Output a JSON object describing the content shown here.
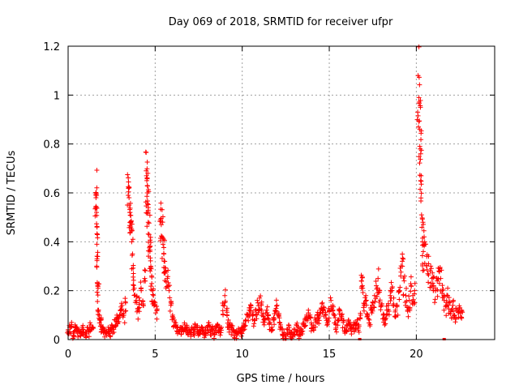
{
  "chart_data": {
    "type": "scatter",
    "title": "Day 069 of 2018, SRMTID for receiver ufpr",
    "xlabel": "GPS time / hours",
    "ylabel": "SRMTID / TECUs",
    "xlim": [
      0,
      24.5
    ],
    "ylim": [
      0,
      1.2
    ],
    "x_ticks": [
      0,
      5,
      10,
      15,
      20
    ],
    "x_tick_labels": [
      "0",
      "5",
      "10",
      "15",
      "20"
    ],
    "y_ticks": [
      0,
      0.2,
      0.4,
      0.6,
      0.8,
      1.0,
      1.2
    ],
    "y_tick_labels": [
      "0",
      "0.2",
      "0.4",
      "0.6",
      "0.8",
      "1",
      "1.2"
    ],
    "grid": true,
    "marker": "+",
    "color": "#ff0000",
    "bottom_markers_x": [
      16.75,
      21.6
    ],
    "series": [
      {
        "name": "SRMTID",
        "points": [
          [
            0.0,
            0.04
          ],
          [
            0.1,
            0.05
          ],
          [
            0.2,
            0.07
          ],
          [
            0.3,
            0.03
          ],
          [
            0.4,
            0.06
          ],
          [
            0.5,
            0.05
          ],
          [
            0.6,
            0.04
          ],
          [
            0.7,
            0.03
          ],
          [
            0.8,
            0.05
          ],
          [
            0.9,
            0.04
          ],
          [
            1.0,
            0.03
          ],
          [
            1.1,
            0.05
          ],
          [
            1.2,
            0.04
          ],
          [
            1.3,
            0.06
          ],
          [
            1.4,
            0.05
          ],
          [
            1.6,
            0.6
          ],
          [
            1.6,
            0.58
          ],
          [
            1.62,
            0.54
          ],
          [
            1.63,
            0.52
          ],
          [
            1.65,
            0.39
          ],
          [
            1.66,
            0.33
          ],
          [
            1.7,
            0.22
          ],
          [
            1.72,
            0.21
          ],
          [
            1.75,
            0.12
          ],
          [
            1.8,
            0.1
          ],
          [
            1.85,
            0.08
          ],
          [
            1.9,
            0.06
          ],
          [
            2.0,
            0.05
          ],
          [
            2.1,
            0.04
          ],
          [
            2.2,
            0.03
          ],
          [
            2.3,
            0.05
          ],
          [
            2.4,
            0.04
          ],
          [
            2.5,
            0.06
          ],
          [
            2.6,
            0.05
          ],
          [
            2.7,
            0.08
          ],
          [
            2.8,
            0.1
          ],
          [
            2.9,
            0.09
          ],
          [
            3.0,
            0.12
          ],
          [
            3.1,
            0.14
          ],
          [
            3.2,
            0.1
          ],
          [
            3.3,
            0.15
          ],
          [
            3.45,
            0.59
          ],
          [
            3.5,
            0.58
          ],
          [
            3.5,
            0.55
          ],
          [
            3.55,
            0.52
          ],
          [
            3.6,
            0.48
          ],
          [
            3.6,
            0.46
          ],
          [
            3.65,
            0.4
          ],
          [
            3.7,
            0.35
          ],
          [
            3.75,
            0.27
          ],
          [
            3.8,
            0.21
          ],
          [
            3.9,
            0.16
          ],
          [
            4.0,
            0.12
          ],
          [
            4.1,
            0.16
          ],
          [
            4.2,
            0.2
          ],
          [
            4.3,
            0.14
          ],
          [
            4.4,
            0.25
          ],
          [
            4.5,
            0.67
          ],
          [
            4.52,
            0.65
          ],
          [
            4.55,
            0.63
          ],
          [
            4.55,
            0.6
          ],
          [
            4.6,
            0.54
          ],
          [
            4.6,
            0.48
          ],
          [
            4.65,
            0.43
          ],
          [
            4.7,
            0.38
          ],
          [
            4.7,
            0.36
          ],
          [
            4.75,
            0.3
          ],
          [
            4.8,
            0.26
          ],
          [
            4.85,
            0.2
          ],
          [
            4.9,
            0.18
          ],
          [
            5.0,
            0.15
          ],
          [
            5.1,
            0.12
          ],
          [
            5.3,
            0.49
          ],
          [
            5.35,
            0.47
          ],
          [
            5.4,
            0.42
          ],
          [
            5.45,
            0.39
          ],
          [
            5.5,
            0.35
          ],
          [
            5.55,
            0.32
          ],
          [
            5.6,
            0.28
          ],
          [
            5.7,
            0.25
          ],
          [
            5.8,
            0.2
          ],
          [
            5.9,
            0.14
          ],
          [
            6.0,
            0.1
          ],
          [
            6.1,
            0.08
          ],
          [
            6.2,
            0.06
          ],
          [
            6.3,
            0.05
          ],
          [
            6.4,
            0.04
          ],
          [
            6.5,
            0.05
          ],
          [
            6.6,
            0.04
          ],
          [
            6.7,
            0.06
          ],
          [
            6.8,
            0.05
          ],
          [
            6.9,
            0.04
          ],
          [
            7.0,
            0.03
          ],
          [
            7.1,
            0.05
          ],
          [
            7.2,
            0.04
          ],
          [
            7.3,
            0.06
          ],
          [
            7.4,
            0.05
          ],
          [
            7.5,
            0.03
          ],
          [
            7.6,
            0.04
          ],
          [
            7.7,
            0.05
          ],
          [
            7.8,
            0.03
          ],
          [
            7.9,
            0.04
          ],
          [
            8.0,
            0.05
          ],
          [
            8.1,
            0.06
          ],
          [
            8.2,
            0.04
          ],
          [
            8.3,
            0.05
          ],
          [
            8.4,
            0.03
          ],
          [
            8.5,
            0.05
          ],
          [
            8.6,
            0.06
          ],
          [
            8.7,
            0.04
          ],
          [
            8.8,
            0.05
          ],
          [
            8.9,
            0.14
          ],
          [
            9.0,
            0.18
          ],
          [
            9.1,
            0.12
          ],
          [
            9.2,
            0.08
          ],
          [
            9.3,
            0.06
          ],
          [
            9.4,
            0.05
          ],
          [
            9.5,
            0.04
          ],
          [
            9.6,
            0.03
          ],
          [
            9.7,
            0.02
          ],
          [
            9.8,
            0.04
          ],
          [
            9.9,
            0.03
          ],
          [
            10.0,
            0.05
          ],
          [
            10.1,
            0.06
          ],
          [
            10.2,
            0.08
          ],
          [
            10.3,
            0.1
          ],
          [
            10.4,
            0.12
          ],
          [
            10.5,
            0.14
          ],
          [
            10.6,
            0.1
          ],
          [
            10.7,
            0.08
          ],
          [
            10.8,
            0.12
          ],
          [
            10.9,
            0.15
          ],
          [
            11.0,
            0.17
          ],
          [
            11.1,
            0.14
          ],
          [
            11.2,
            0.1
          ],
          [
            11.3,
            0.08
          ],
          [
            11.4,
            0.12
          ],
          [
            11.5,
            0.1
          ],
          [
            11.6,
            0.07
          ],
          [
            11.7,
            0.05
          ],
          [
            11.8,
            0.09
          ],
          [
            11.9,
            0.12
          ],
          [
            12.0,
            0.14
          ],
          [
            12.1,
            0.1
          ],
          [
            12.2,
            0.06
          ],
          [
            12.3,
            0.04
          ],
          [
            12.4,
            0.03
          ],
          [
            12.5,
            0.02
          ],
          [
            12.6,
            0.04
          ],
          [
            12.7,
            0.05
          ],
          [
            12.8,
            0.03
          ],
          [
            12.9,
            0.02
          ],
          [
            13.0,
            0.04
          ],
          [
            13.1,
            0.06
          ],
          [
            13.2,
            0.05
          ],
          [
            13.3,
            0.03
          ],
          [
            13.4,
            0.04
          ],
          [
            13.5,
            0.06
          ],
          [
            13.6,
            0.08
          ],
          [
            13.7,
            0.1
          ],
          [
            13.8,
            0.12
          ],
          [
            13.9,
            0.09
          ],
          [
            14.0,
            0.06
          ],
          [
            14.1,
            0.05
          ],
          [
            14.2,
            0.08
          ],
          [
            14.3,
            0.1
          ],
          [
            14.4,
            0.09
          ],
          [
            14.5,
            0.12
          ],
          [
            14.6,
            0.15
          ],
          [
            14.7,
            0.13
          ],
          [
            14.8,
            0.1
          ],
          [
            14.9,
            0.08
          ],
          [
            15.0,
            0.12
          ],
          [
            15.1,
            0.16
          ],
          [
            15.2,
            0.14
          ],
          [
            15.3,
            0.1
          ],
          [
            15.4,
            0.06
          ],
          [
            15.5,
            0.08
          ],
          [
            15.6,
            0.12
          ],
          [
            15.7,
            0.1
          ],
          [
            15.8,
            0.07
          ],
          [
            15.9,
            0.05
          ],
          [
            16.0,
            0.06
          ],
          [
            16.1,
            0.08
          ],
          [
            16.2,
            0.07
          ],
          [
            16.3,
            0.05
          ],
          [
            16.4,
            0.06
          ],
          [
            16.5,
            0.07
          ],
          [
            16.6,
            0.08
          ],
          [
            16.7,
            0.06
          ],
          [
            16.8,
            0.1
          ],
          [
            16.85,
            0.24
          ],
          [
            16.9,
            0.22
          ],
          [
            17.0,
            0.14
          ],
          [
            17.1,
            0.18
          ],
          [
            17.2,
            0.1
          ],
          [
            17.3,
            0.08
          ],
          [
            17.4,
            0.12
          ],
          [
            17.5,
            0.15
          ],
          [
            17.6,
            0.18
          ],
          [
            17.7,
            0.22
          ],
          [
            17.8,
            0.25
          ],
          [
            17.9,
            0.2
          ],
          [
            18.0,
            0.14
          ],
          [
            18.1,
            0.1
          ],
          [
            18.2,
            0.08
          ],
          [
            18.3,
            0.12
          ],
          [
            18.4,
            0.14
          ],
          [
            18.5,
            0.18
          ],
          [
            18.6,
            0.21
          ],
          [
            18.7,
            0.17
          ],
          [
            18.8,
            0.12
          ],
          [
            18.9,
            0.14
          ],
          [
            19.0,
            0.2
          ],
          [
            19.1,
            0.26
          ],
          [
            19.2,
            0.3
          ],
          [
            19.3,
            0.24
          ],
          [
            19.4,
            0.18
          ],
          [
            19.5,
            0.12
          ],
          [
            19.6,
            0.16
          ],
          [
            19.7,
            0.22
          ],
          [
            19.8,
            0.18
          ],
          [
            19.9,
            0.2
          ],
          [
            20.1,
            1.08
          ],
          [
            20.15,
            0.99
          ],
          [
            20.2,
            0.86
          ],
          [
            20.2,
            0.79
          ],
          [
            20.22,
            0.78
          ],
          [
            20.25,
            0.76
          ],
          [
            20.25,
            0.65
          ],
          [
            20.3,
            0.51
          ],
          [
            20.35,
            0.4
          ],
          [
            20.4,
            0.36
          ],
          [
            20.45,
            0.42
          ],
          [
            20.5,
            0.39
          ],
          [
            20.6,
            0.34
          ],
          [
            20.7,
            0.31
          ],
          [
            20.8,
            0.28
          ],
          [
            20.9,
            0.25
          ],
          [
            21.0,
            0.22
          ],
          [
            21.1,
            0.2
          ],
          [
            21.2,
            0.24
          ],
          [
            21.3,
            0.28
          ],
          [
            21.4,
            0.25
          ],
          [
            21.5,
            0.2
          ],
          [
            21.6,
            0.16
          ],
          [
            21.7,
            0.14
          ],
          [
            21.8,
            0.18
          ],
          [
            21.9,
            0.15
          ],
          [
            22.0,
            0.12
          ],
          [
            22.1,
            0.14
          ],
          [
            22.2,
            0.1
          ],
          [
            22.3,
            0.12
          ],
          [
            22.4,
            0.11
          ],
          [
            22.5,
            0.13
          ],
          [
            22.6,
            0.12
          ]
        ]
      }
    ]
  },
  "noise_seed": 69
}
